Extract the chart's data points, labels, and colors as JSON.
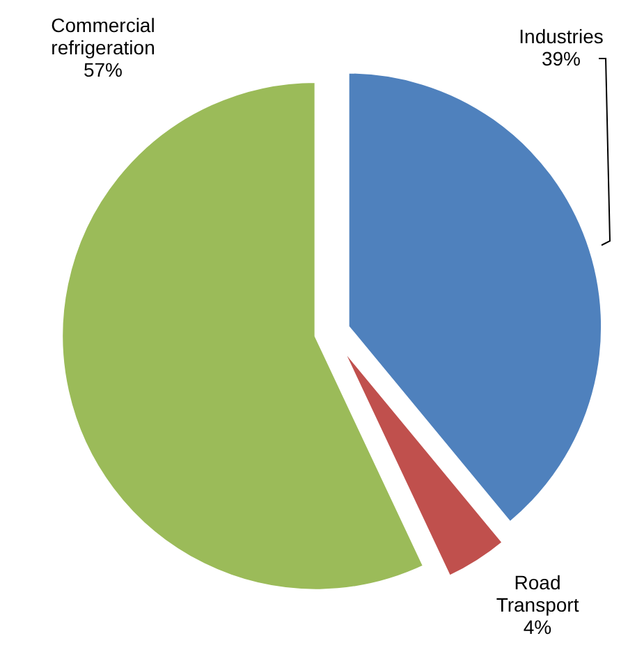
{
  "chart_data": {
    "type": "pie",
    "categories": [
      "Industries",
      "Road Transport",
      "Commercial refrigeration"
    ],
    "values": [
      39,
      4,
      57
    ],
    "value_labels": [
      "39%",
      "4%",
      "57%"
    ],
    "colors": [
      "#4f81bd",
      "#c0504d",
      "#9bbb59"
    ]
  }
}
